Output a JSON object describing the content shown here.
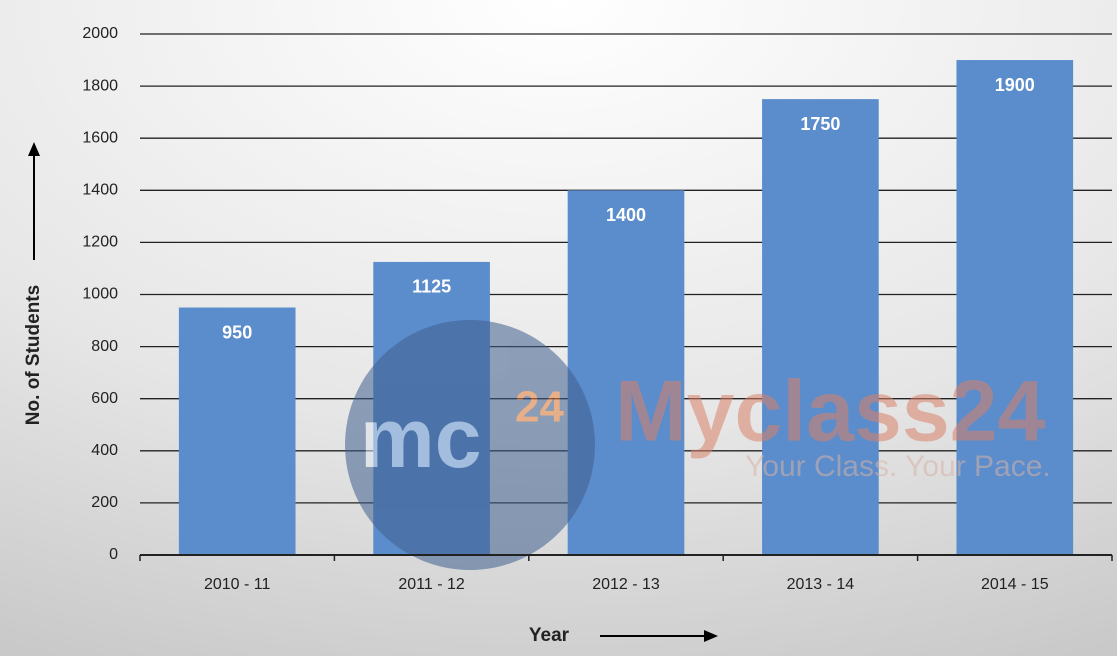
{
  "chart_data": {
    "type": "bar",
    "x_label": "Year",
    "y_label": "No. of Students",
    "categories": [
      "2010 - 11",
      "2011 - 12",
      "2012 - 13",
      "2013 - 14",
      "2014 - 15"
    ],
    "values": [
      950,
      1125,
      1400,
      1750,
      1900
    ],
    "color": "#5b8ccb",
    "ylim": [
      0,
      2000
    ],
    "yticks": [
      0,
      200,
      400,
      600,
      800,
      1000,
      1200,
      1400,
      1600,
      1800,
      2000
    ],
    "grid": true,
    "watermark": {
      "logo": "mc",
      "logo_sup": "24",
      "brand": "Myclass24",
      "tagline": "Your Class. Your Pace."
    }
  }
}
